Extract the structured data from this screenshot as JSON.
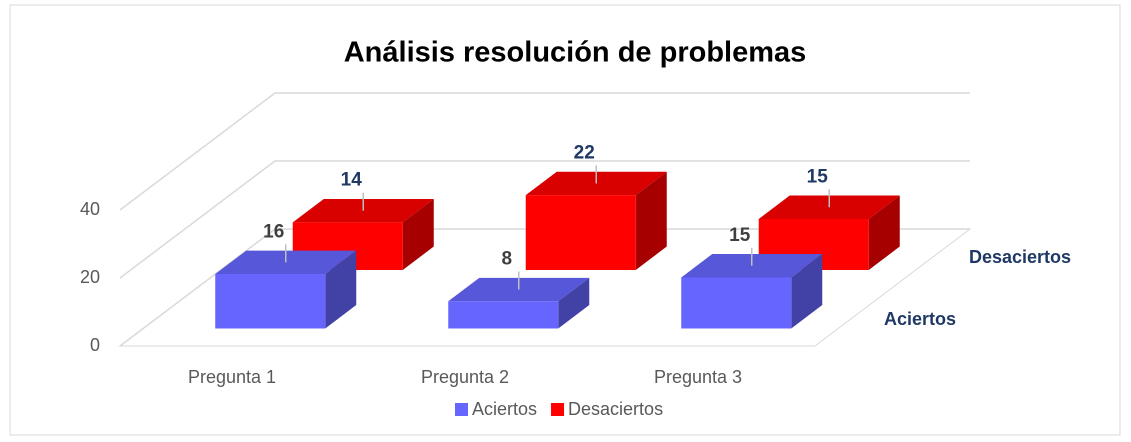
{
  "chart_data": {
    "type": "bar3d",
    "title": "Análisis resolución de problemas",
    "categories": [
      "Pregunta 1",
      "Pregunta 2",
      "Pregunta 3"
    ],
    "series": [
      {
        "name": "Aciertos",
        "color": "#6666ff",
        "values": [
          16,
          8,
          15
        ]
      },
      {
        "name": "Desaciertos",
        "color": "#ff0000",
        "values": [
          14,
          22,
          15
        ]
      }
    ],
    "ylim": [
      0,
      40
    ],
    "yticks": [
      0,
      20,
      40
    ],
    "grid": true,
    "legend": "bottom"
  }
}
